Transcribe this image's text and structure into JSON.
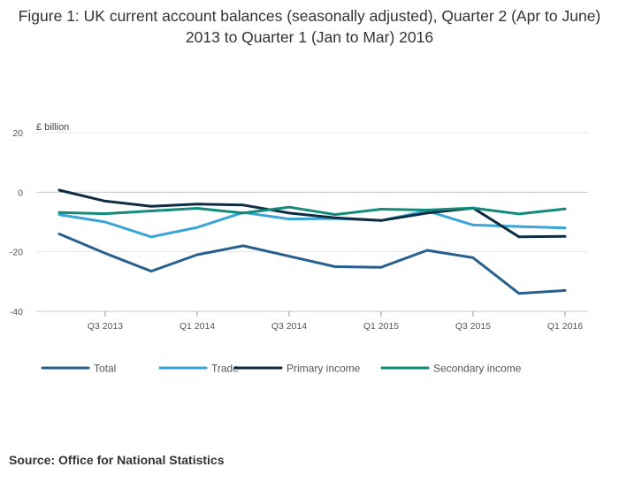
{
  "chart_data": {
    "type": "line",
    "title": "Figure 1: UK current account balances (seasonally adjusted), Quarter 2 (Apr to June) 2013 to Quarter 1 (Jan to Mar) 2016",
    "ylabel": "£ billion",
    "xlabel": "",
    "ylim": [
      -40,
      20
    ],
    "yticks": [
      20,
      0,
      -20,
      -40
    ],
    "grid": true,
    "legend_position": "bottom",
    "categories": [
      "Q2 2013",
      "Q3 2013",
      "Q4 2013",
      "Q1 2014",
      "Q2 2014",
      "Q3 2014",
      "Q4 2014",
      "Q1 2015",
      "Q2 2015",
      "Q3 2015",
      "Q4 2015",
      "Q1 2016"
    ],
    "tick_labels": [
      {
        "index": 1,
        "label": "Q3 2013"
      },
      {
        "index": 3,
        "label": "Q1 2014"
      },
      {
        "index": 5,
        "label": "Q3 2014"
      },
      {
        "index": 7,
        "label": "Q1 2015"
      },
      {
        "index": 9,
        "label": "Q3 2015"
      },
      {
        "index": 11,
        "label": "Q1 2016"
      }
    ],
    "series": [
      {
        "name": "Total",
        "color": "#27608f",
        "values": [
          -14,
          -20.5,
          -26.5,
          -21,
          -18,
          -21.5,
          -25,
          -25.2,
          -19.5,
          -22,
          -34,
          -33
        ]
      },
      {
        "name": "Trade",
        "color": "#39a5d6",
        "values": [
          -7.5,
          -10,
          -15,
          -11.8,
          -6.8,
          -9,
          -8.8,
          -9.5,
          -6.3,
          -11,
          -11.5,
          -12
        ]
      },
      {
        "name": "Primary income",
        "color": "#0e2d42",
        "values": [
          0.7,
          -3,
          -4.7,
          -4,
          -4.3,
          -7,
          -8.6,
          -9.5,
          -7,
          -5.3,
          -15,
          -14.8
        ]
      },
      {
        "name": "Secondary income",
        "color": "#118c7b",
        "values": [
          -6.8,
          -7.2,
          -6.3,
          -5.4,
          -7,
          -5,
          -7.5,
          -5.7,
          -6,
          -5.3,
          -7.3,
          -5.6
        ]
      }
    ]
  },
  "source": "Source: Office for National Statistics"
}
